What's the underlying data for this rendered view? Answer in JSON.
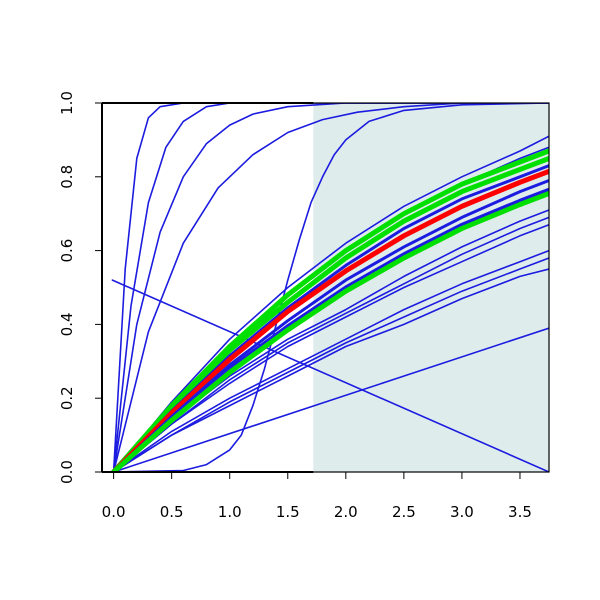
{
  "chart_data": {
    "type": "line",
    "title": "",
    "xlabel": "",
    "ylabel": "",
    "xlim": [
      -0.1,
      3.75
    ],
    "ylim": [
      0.0,
      1.0
    ],
    "x_ticks": [
      0.0,
      0.5,
      1.0,
      1.5,
      2.0,
      2.5,
      3.0,
      3.5
    ],
    "x_tick_labels": [
      "0.0",
      "0.5",
      "1.0",
      "1.5",
      "2.0",
      "2.5",
      "3.0",
      "3.5"
    ],
    "y_ticks": [
      0.0,
      0.2,
      0.4,
      0.6,
      0.8,
      1.0
    ],
    "y_tick_labels": [
      "0.0",
      "0.2",
      "0.4",
      "0.6",
      "0.8",
      "1.0"
    ],
    "shaded_region": {
      "x_from": 1.72,
      "x_to": 3.75,
      "color": "#dfecec"
    },
    "colors": {
      "blue": "#1c1ce0",
      "red": "#ff0000",
      "green": "#00e000",
      "axis": "#000000"
    },
    "series": [
      {
        "color": "#1c1ce0",
        "width": 1.6,
        "points": [
          [
            0.0,
            0.0
          ],
          [
            0.1,
            0.55
          ],
          [
            0.2,
            0.85
          ],
          [
            0.3,
            0.96
          ],
          [
            0.4,
            0.99
          ],
          [
            0.6,
            1.0
          ],
          [
            3.75,
            1.0
          ]
        ]
      },
      {
        "color": "#1c1ce0",
        "width": 1.6,
        "points": [
          [
            0.0,
            0.0
          ],
          [
            0.15,
            0.45
          ],
          [
            0.3,
            0.73
          ],
          [
            0.45,
            0.88
          ],
          [
            0.6,
            0.95
          ],
          [
            0.8,
            0.99
          ],
          [
            1.0,
            1.0
          ],
          [
            3.75,
            1.0
          ]
        ]
      },
      {
        "color": "#1c1ce0",
        "width": 1.6,
        "points": [
          [
            0.0,
            0.0
          ],
          [
            0.2,
            0.4
          ],
          [
            0.4,
            0.65
          ],
          [
            0.6,
            0.8
          ],
          [
            0.8,
            0.89
          ],
          [
            1.0,
            0.94
          ],
          [
            1.2,
            0.97
          ],
          [
            1.5,
            0.99
          ],
          [
            2.0,
            1.0
          ],
          [
            3.75,
            1.0
          ]
        ]
      },
      {
        "color": "#1c1ce0",
        "width": 1.6,
        "points": [
          [
            0.0,
            0.0
          ],
          [
            0.3,
            0.38
          ],
          [
            0.6,
            0.62
          ],
          [
            0.9,
            0.77
          ],
          [
            1.2,
            0.86
          ],
          [
            1.5,
            0.92
          ],
          [
            1.8,
            0.955
          ],
          [
            2.1,
            0.975
          ],
          [
            2.5,
            0.99
          ],
          [
            3.0,
            1.0
          ],
          [
            3.75,
            1.0
          ]
        ]
      },
      {
        "color": "#1c1ce0",
        "width": 1.6,
        "points": [
          [
            0.0,
            0.0
          ],
          [
            0.6,
            0.004
          ],
          [
            0.8,
            0.02
          ],
          [
            1.0,
            0.06
          ],
          [
            1.1,
            0.1
          ],
          [
            1.2,
            0.18
          ],
          [
            1.3,
            0.28
          ],
          [
            1.4,
            0.4
          ],
          [
            1.5,
            0.52
          ],
          [
            1.6,
            0.63
          ],
          [
            1.7,
            0.73
          ],
          [
            1.8,
            0.8
          ],
          [
            1.9,
            0.86
          ],
          [
            2.0,
            0.9
          ],
          [
            2.2,
            0.95
          ],
          [
            2.5,
            0.98
          ],
          [
            3.0,
            0.995
          ],
          [
            3.75,
            1.0
          ]
        ]
      },
      {
        "color": "#1c1ce0",
        "width": 1.6,
        "points": [
          [
            -0.01,
            0.52
          ],
          [
            3.75,
            0.0
          ]
        ]
      },
      {
        "color": "#1c1ce0",
        "width": 1.6,
        "points": [
          [
            0.0,
            0.0
          ],
          [
            3.75,
            0.39
          ]
        ]
      },
      {
        "color": "#1c1ce0",
        "width": 1.6,
        "points": [
          [
            0.0,
            0.0
          ],
          [
            0.5,
            0.14
          ],
          [
            1.0,
            0.26
          ],
          [
            1.5,
            0.36
          ],
          [
            2.0,
            0.44
          ],
          [
            2.5,
            0.53
          ],
          [
            3.0,
            0.61
          ],
          [
            3.5,
            0.68
          ],
          [
            3.75,
            0.71
          ]
        ]
      },
      {
        "color": "#1c1ce0",
        "width": 1.6,
        "points": [
          [
            0.0,
            0.0
          ],
          [
            0.5,
            0.13
          ],
          [
            1.0,
            0.25
          ],
          [
            1.5,
            0.35
          ],
          [
            2.0,
            0.43
          ],
          [
            2.5,
            0.51
          ],
          [
            3.0,
            0.59
          ],
          [
            3.5,
            0.66
          ],
          [
            3.75,
            0.69
          ]
        ]
      },
      {
        "color": "#1c1ce0",
        "width": 1.6,
        "points": [
          [
            0.0,
            0.0
          ],
          [
            0.5,
            0.13
          ],
          [
            1.0,
            0.24
          ],
          [
            1.5,
            0.34
          ],
          [
            2.0,
            0.42
          ],
          [
            2.5,
            0.5
          ],
          [
            3.0,
            0.57
          ],
          [
            3.5,
            0.64
          ],
          [
            3.75,
            0.67
          ]
        ]
      },
      {
        "color": "#1c1ce0",
        "width": 1.6,
        "points": [
          [
            0.0,
            0.0
          ],
          [
            0.5,
            0.11
          ],
          [
            1.0,
            0.2
          ],
          [
            1.5,
            0.28
          ],
          [
            2.0,
            0.36
          ],
          [
            2.5,
            0.44
          ],
          [
            3.0,
            0.51
          ],
          [
            3.5,
            0.57
          ],
          [
            3.75,
            0.6
          ]
        ]
      },
      {
        "color": "#1c1ce0",
        "width": 1.6,
        "points": [
          [
            0.0,
            0.0
          ],
          [
            0.5,
            0.1
          ],
          [
            1.0,
            0.19
          ],
          [
            1.5,
            0.27
          ],
          [
            2.0,
            0.35
          ],
          [
            2.5,
            0.42
          ],
          [
            3.0,
            0.49
          ],
          [
            3.5,
            0.55
          ],
          [
            3.75,
            0.58
          ]
        ]
      },
      {
        "color": "#1c1ce0",
        "width": 1.6,
        "points": [
          [
            0.0,
            0.0
          ],
          [
            0.5,
            0.1
          ],
          [
            1.0,
            0.18
          ],
          [
            1.5,
            0.26
          ],
          [
            2.0,
            0.34
          ],
          [
            2.5,
            0.4
          ],
          [
            3.0,
            0.47
          ],
          [
            3.5,
            0.53
          ],
          [
            3.75,
            0.55
          ]
        ]
      },
      {
        "color": "#1c1ce0",
        "width": 1.6,
        "points": [
          [
            0.0,
            0.0
          ],
          [
            0.5,
            0.19
          ],
          [
            1.0,
            0.36
          ],
          [
            1.5,
            0.5
          ],
          [
            2.0,
            0.62
          ],
          [
            2.5,
            0.72
          ],
          [
            3.0,
            0.8
          ],
          [
            3.5,
            0.87
          ],
          [
            3.75,
            0.91
          ]
        ]
      },
      {
        "color": "#1c1ce0",
        "width": 1.6,
        "points": [
          [
            0.0,
            0.0
          ],
          [
            0.5,
            0.18
          ],
          [
            1.0,
            0.34
          ],
          [
            1.5,
            0.48
          ],
          [
            2.0,
            0.6
          ],
          [
            2.5,
            0.7
          ],
          [
            3.0,
            0.78
          ],
          [
            3.5,
            0.85
          ],
          [
            3.75,
            0.88
          ]
        ]
      },
      {
        "color": "#00e000",
        "width": 5,
        "points": [
          [
            0.0,
            0.0
          ],
          [
            0.5,
            0.18
          ],
          [
            1.0,
            0.34
          ],
          [
            1.5,
            0.48
          ],
          [
            2.0,
            0.6
          ],
          [
            2.5,
            0.7
          ],
          [
            3.0,
            0.78
          ],
          [
            3.5,
            0.84
          ],
          [
            3.75,
            0.87
          ]
        ]
      },
      {
        "color": "#00e000",
        "width": 5,
        "points": [
          [
            0.0,
            0.0
          ],
          [
            0.5,
            0.17
          ],
          [
            1.0,
            0.33
          ],
          [
            1.5,
            0.46
          ],
          [
            2.0,
            0.58
          ],
          [
            2.5,
            0.68
          ],
          [
            3.0,
            0.76
          ],
          [
            3.5,
            0.82
          ],
          [
            3.75,
            0.85
          ]
        ]
      },
      {
        "color": "#1c1ce0",
        "width": 3,
        "points": [
          [
            0.0,
            0.0
          ],
          [
            0.5,
            0.165
          ],
          [
            1.0,
            0.315
          ],
          [
            1.5,
            0.445
          ],
          [
            2.0,
            0.56
          ],
          [
            2.5,
            0.66
          ],
          [
            3.0,
            0.74
          ],
          [
            3.5,
            0.8
          ],
          [
            3.75,
            0.83
          ]
        ]
      },
      {
        "color": "#ff0000",
        "width": 5,
        "points": [
          [
            0.0,
            0.0
          ],
          [
            0.5,
            0.16
          ],
          [
            1.0,
            0.305
          ],
          [
            1.5,
            0.435
          ],
          [
            2.0,
            0.545
          ],
          [
            2.5,
            0.64
          ],
          [
            3.0,
            0.72
          ],
          [
            3.5,
            0.785
          ],
          [
            3.75,
            0.815
          ]
        ]
      },
      {
        "color": "#1c1ce0",
        "width": 3,
        "points": [
          [
            0.0,
            0.0
          ],
          [
            0.5,
            0.15
          ],
          [
            1.0,
            0.29
          ],
          [
            1.5,
            0.41
          ],
          [
            2.0,
            0.52
          ],
          [
            2.5,
            0.61
          ],
          [
            3.0,
            0.69
          ],
          [
            3.5,
            0.76
          ],
          [
            3.75,
            0.79
          ]
        ]
      },
      {
        "color": "#1c1ce0",
        "width": 4,
        "points": [
          [
            0.0,
            0.0
          ],
          [
            0.5,
            0.145
          ],
          [
            1.0,
            0.28
          ],
          [
            1.5,
            0.395
          ],
          [
            2.0,
            0.5
          ],
          [
            2.5,
            0.59
          ],
          [
            3.0,
            0.67
          ],
          [
            3.5,
            0.735
          ],
          [
            3.75,
            0.765
          ]
        ]
      },
      {
        "color": "#00e000",
        "width": 5,
        "points": [
          [
            0.0,
            0.0
          ],
          [
            0.5,
            0.14
          ],
          [
            1.0,
            0.27
          ],
          [
            1.5,
            0.385
          ],
          [
            2.0,
            0.49
          ],
          [
            2.5,
            0.58
          ],
          [
            3.0,
            0.66
          ],
          [
            3.5,
            0.725
          ],
          [
            3.75,
            0.755
          ]
        ]
      }
    ]
  }
}
